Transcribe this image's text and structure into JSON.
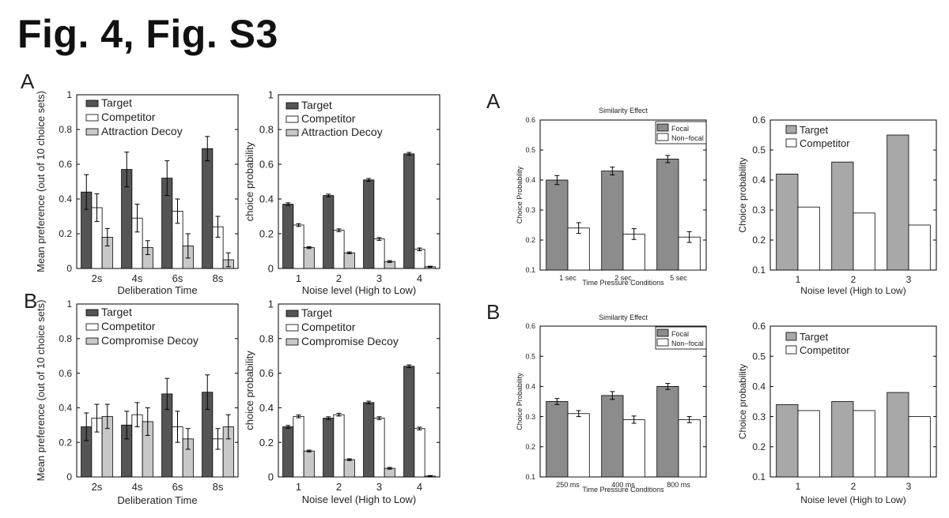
{
  "title": "Fig. 4, Fig. S3",
  "panel_labels": {
    "left_a": "A",
    "left_b": "B",
    "right_a": "A",
    "right_b": "B"
  },
  "chart_data": [
    {
      "id": "c1",
      "type": "bar",
      "title": "",
      "xlabel": "Deliberation Time",
      "ylabel": "Mean preference (out of 10 choice sets)",
      "ylim": [
        0,
        1
      ],
      "yticks": [
        "0",
        "0.2",
        "0.4",
        "0.6",
        "0.8",
        "1"
      ],
      "categories": [
        "2s",
        "4s",
        "6s",
        "8s"
      ],
      "series": [
        {
          "name": "Target",
          "color": "#555555",
          "values": [
            0.44,
            0.57,
            0.52,
            0.69
          ],
          "errors": [
            0.1,
            0.1,
            0.1,
            0.07
          ]
        },
        {
          "name": "Competitor",
          "color": "#ffffff",
          "values": [
            0.35,
            0.29,
            0.33,
            0.24
          ],
          "errors": [
            0.08,
            0.08,
            0.07,
            0.06
          ]
        },
        {
          "name": "Attraction Decoy",
          "color": "#c8c8c8",
          "values": [
            0.18,
            0.12,
            0.13,
            0.05
          ],
          "errors": [
            0.05,
            0.04,
            0.07,
            0.04
          ]
        }
      ]
    },
    {
      "id": "c2",
      "type": "bar",
      "title": "",
      "xlabel": "Noise level (High to Low)",
      "ylabel": "choice probability",
      "ylim": [
        0,
        1
      ],
      "yticks": [
        "0",
        "0.2",
        "0.4",
        "0.6",
        "0.8",
        "1"
      ],
      "categories": [
        "1",
        "2",
        "3",
        "4"
      ],
      "series": [
        {
          "name": "Target",
          "color": "#555555",
          "values": [
            0.37,
            0.42,
            0.51,
            0.66
          ],
          "errors": [
            0.008,
            0.008,
            0.008,
            0.008
          ]
        },
        {
          "name": "Competitor",
          "color": "#ffffff",
          "values": [
            0.25,
            0.22,
            0.17,
            0.11
          ],
          "errors": [
            0.008,
            0.008,
            0.008,
            0.008
          ]
        },
        {
          "name": "Attraction Decoy",
          "color": "#c8c8c8",
          "values": [
            0.12,
            0.09,
            0.04,
            0.01
          ],
          "errors": [
            0.005,
            0.005,
            0.005,
            0.003
          ]
        }
      ]
    },
    {
      "id": "c3",
      "type": "bar",
      "title": "",
      "xlabel": "Deliberation Time",
      "ylabel": "Mean preference (out of 10 choice sets)",
      "ylim": [
        0,
        1
      ],
      "yticks": [
        "0",
        "0.2",
        "0.4",
        "0.6",
        "0.8",
        "1"
      ],
      "categories": [
        "2s",
        "4s",
        "6s",
        "8s"
      ],
      "series": [
        {
          "name": "Target",
          "color": "#555555",
          "values": [
            0.29,
            0.3,
            0.48,
            0.49
          ],
          "errors": [
            0.08,
            0.08,
            0.09,
            0.1
          ]
        },
        {
          "name": "Competitor",
          "color": "#ffffff",
          "values": [
            0.34,
            0.36,
            0.29,
            0.22
          ],
          "errors": [
            0.08,
            0.07,
            0.09,
            0.06
          ]
        },
        {
          "name": "Compromise Decoy",
          "color": "#c8c8c8",
          "values": [
            0.35,
            0.32,
            0.22,
            0.29
          ],
          "errors": [
            0.07,
            0.08,
            0.06,
            0.07
          ]
        }
      ]
    },
    {
      "id": "c4",
      "type": "bar",
      "title": "",
      "xlabel": "Noise level (High to Low)",
      "ylabel": "choice probability",
      "ylim": [
        0,
        1
      ],
      "yticks": [
        "0",
        "0.2",
        "0.4",
        "0.6",
        "0.8",
        "1"
      ],
      "categories": [
        "1",
        "2",
        "3",
        "4"
      ],
      "series": [
        {
          "name": "Target",
          "color": "#555555",
          "values": [
            0.29,
            0.34,
            0.43,
            0.64
          ],
          "errors": [
            0.008,
            0.008,
            0.008,
            0.008
          ]
        },
        {
          "name": "Competitor",
          "color": "#ffffff",
          "values": [
            0.35,
            0.36,
            0.34,
            0.28
          ],
          "errors": [
            0.008,
            0.008,
            0.008,
            0.008
          ]
        },
        {
          "name": "Compromise Decoy",
          "color": "#c8c8c8",
          "values": [
            0.15,
            0.1,
            0.05,
            0.005
          ],
          "errors": [
            0.005,
            0.005,
            0.005,
            0.003
          ]
        }
      ]
    },
    {
      "id": "c5",
      "type": "bar",
      "title": "Similarity Effect",
      "xlabel": "Time Pressure Conditions",
      "ylabel": "Choice Probability",
      "ylim": [
        0.1,
        0.6
      ],
      "yticks": [
        "0.1",
        "0.2",
        "0.3",
        "0.4",
        "0.5",
        "0.6"
      ],
      "categories": [
        "1 sec",
        "2 sec",
        "5 sec"
      ],
      "series": [
        {
          "name": "Focal",
          "color": "#8c8c8c",
          "values": [
            0.4,
            0.43,
            0.47
          ],
          "errors": [
            0.015,
            0.013,
            0.012
          ]
        },
        {
          "name": "Non−focal",
          "color": "#ffffff",
          "values": [
            0.24,
            0.22,
            0.21
          ],
          "errors": [
            0.018,
            0.018,
            0.018
          ]
        }
      ]
    },
    {
      "id": "c6",
      "type": "bar",
      "title": "",
      "xlabel": "Noise level (High to Low)",
      "ylabel": "Choice probability",
      "ylim": [
        0.1,
        0.6
      ],
      "yticks": [
        "0.1",
        "0.2",
        "0.3",
        "0.4",
        "0.5",
        "0.6"
      ],
      "categories": [
        "1",
        "2",
        "3"
      ],
      "series": [
        {
          "name": "Target",
          "color": "#a8a8a8",
          "values": [
            0.42,
            0.46,
            0.55
          ],
          "errors": [
            0,
            0,
            0
          ]
        },
        {
          "name": "Competitor",
          "color": "#ffffff",
          "values": [
            0.31,
            0.29,
            0.25
          ],
          "errors": [
            0,
            0,
            0
          ]
        }
      ]
    },
    {
      "id": "c7",
      "type": "bar",
      "title": "Similarity Effect",
      "xlabel": "Time Pressure Conditions",
      "ylabel": "Choice Probability",
      "ylim": [
        0.1,
        0.6
      ],
      "yticks": [
        "0.1",
        "0.2",
        "0.3",
        "0.4",
        "0.5",
        "0.6"
      ],
      "categories": [
        "250 ms",
        "400 ms",
        "800 ms"
      ],
      "series": [
        {
          "name": "Focal",
          "color": "#8c8c8c",
          "values": [
            0.35,
            0.37,
            0.4
          ],
          "errors": [
            0.01,
            0.013,
            0.01
          ]
        },
        {
          "name": "Non−focal",
          "color": "#ffffff",
          "values": [
            0.31,
            0.29,
            0.29
          ],
          "errors": [
            0.01,
            0.012,
            0.01
          ]
        }
      ]
    },
    {
      "id": "c8",
      "type": "bar",
      "title": "",
      "xlabel": "Noise level (High to Low)",
      "ylabel": "Choice probability",
      "ylim": [
        0.1,
        0.6
      ],
      "yticks": [
        "0.1",
        "0.2",
        "0.3",
        "0.4",
        "0.5",
        "0.6"
      ],
      "categories": [
        "1",
        "2",
        "3"
      ],
      "series": [
        {
          "name": "Target",
          "color": "#a8a8a8",
          "values": [
            0.34,
            0.35,
            0.38
          ],
          "errors": [
            0,
            0,
            0
          ]
        },
        {
          "name": "Competitor",
          "color": "#ffffff",
          "values": [
            0.32,
            0.32,
            0.3
          ],
          "errors": [
            0,
            0,
            0
          ]
        }
      ]
    }
  ]
}
